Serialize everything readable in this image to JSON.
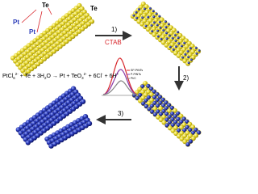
{
  "labels": {
    "te_top": "Te",
    "te_right": "Te",
    "pt_left": "Pt",
    "pt_mid": "Pt"
  },
  "steps": {
    "step1": "1)",
    "ctab": "CTAB",
    "step2": "2)",
    "step3": "3)"
  },
  "legend": [
    "SP-PtNTs",
    "P-PtNTs",
    "Pt/C"
  ],
  "equation": [
    "PtCl",
    "6",
    "2-",
    " + Te + 3H",
    "2",
    "O",
    " → Pt + TeO",
    "3",
    "2-",
    " + 6Cl",
    "-",
    " + 6H",
    "+"
  ]
}
